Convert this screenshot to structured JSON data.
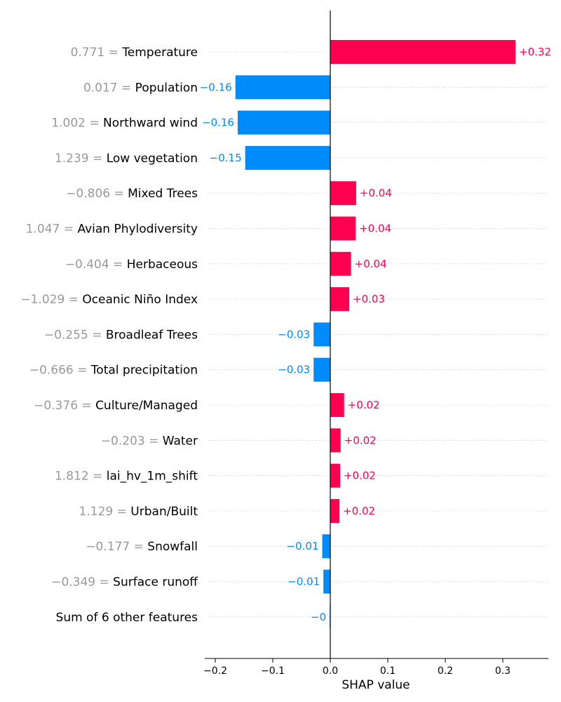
{
  "chart_data": {
    "type": "bar",
    "orientation": "horizontal",
    "xlabel": "SHAP value",
    "xlim": [
      -0.22,
      0.38
    ],
    "xticks": [
      -0.2,
      -0.1,
      0.0,
      0.1,
      0.2,
      0.3
    ],
    "xtick_labels": [
      "−0.2",
      "−0.1",
      "0.0",
      "0.1",
      "0.2",
      "0.3"
    ],
    "grid": "dotted horizontal guide per row",
    "colors": {
      "positive": "#ff0051",
      "negative": "#008bfb",
      "feature_value": "#999999",
      "feature_name": "#000000"
    },
    "features": [
      {
        "value_text": "0.771 = ",
        "name": "Temperature",
        "shap": 0.322,
        "label": "+0.32"
      },
      {
        "value_text": "0.017 = ",
        "name": "Population",
        "shap": -0.165,
        "label": "−0.16"
      },
      {
        "value_text": "1.002 = ",
        "name": "Northward wind",
        "shap": -0.161,
        "label": "−0.16"
      },
      {
        "value_text": "1.239 = ",
        "name": "Low vegetation",
        "shap": -0.148,
        "label": "−0.15"
      },
      {
        "value_text": "−0.806 = ",
        "name": "Mixed Trees",
        "shap": 0.045,
        "label": "+0.04"
      },
      {
        "value_text": "1.047 = ",
        "name": "Avian Phylodiversity",
        "shap": 0.044,
        "label": "+0.04"
      },
      {
        "value_text": "−0.404 = ",
        "name": "Herbaceous",
        "shap": 0.036,
        "label": "+0.04"
      },
      {
        "value_text": "−1.029 = ",
        "name": "Oceanic Niño Index",
        "shap": 0.033,
        "label": "+0.03"
      },
      {
        "value_text": "−0.255 = ",
        "name": "Broadleaf Trees",
        "shap": -0.029,
        "label": "−0.03"
      },
      {
        "value_text": "−0.666 = ",
        "name": "Total precipitation",
        "shap": -0.029,
        "label": "−0.03"
      },
      {
        "value_text": "−0.376 = ",
        "name": "Culture/Managed",
        "shap": 0.024,
        "label": "+0.02"
      },
      {
        "value_text": "−0.203 = ",
        "name": "Water",
        "shap": 0.018,
        "label": "+0.02"
      },
      {
        "value_text": "1.812 = ",
        "name": "lai_hv_1m_shift",
        "shap": 0.017,
        "label": "+0.02"
      },
      {
        "value_text": "1.129 = ",
        "name": "Urban/Built",
        "shap": 0.016,
        "label": "+0.02"
      },
      {
        "value_text": "−0.177 = ",
        "name": "Snowfall",
        "shap": -0.014,
        "label": "−0.01"
      },
      {
        "value_text": "−0.349 = ",
        "name": "Surface runoff",
        "shap": -0.012,
        "label": "−0.01"
      },
      {
        "value_text": "",
        "name": "Sum of 6 other features",
        "shap": -0.001,
        "label": "−0"
      }
    ]
  }
}
